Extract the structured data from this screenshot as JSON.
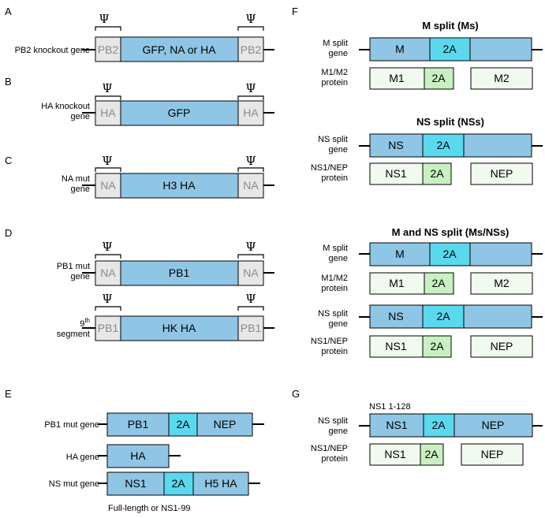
{
  "colors": {
    "gene": "#8fc6e6",
    "cleave": "#5ad8ee",
    "utr": "#e7e7e7",
    "utr_text": "#8a8a8a",
    "protein": "#f1faee",
    "protein_2a": "#c9f0c2",
    "stroke": "#000000"
  },
  "icons": {
    "packaging_signal": "psi-bracket-icon"
  },
  "panels": {
    "A": {
      "letter": "A",
      "gene_label": "PB2 knockout gene",
      "psi": "Ψ",
      "left_end": "PB2",
      "middle": "GFP, NA or HA",
      "right_end": "PB2"
    },
    "B": {
      "letter": "B",
      "gene_label": [
        "HA knockout",
        "gene"
      ],
      "psi": "Ψ",
      "left_end": "HA",
      "middle": "GFP",
      "right_end": "HA"
    },
    "C": {
      "letter": "C",
      "gene_label": [
        "NA mut",
        "gene"
      ],
      "psi": "Ψ",
      "left_end": "NA",
      "middle": "H3 HA",
      "right_end": "NA"
    },
    "D": {
      "letter": "D",
      "rows": [
        {
          "gene_label": [
            "PB1 mut",
            "gene"
          ],
          "psi": "Ψ",
          "left_end": "NA",
          "middle": "PB1",
          "right_end": "NA"
        },
        {
          "gene_label_base": "9",
          "gene_label_sup": "th",
          "gene_label_line2": "segment",
          "psi": "Ψ",
          "left_end": "PB1",
          "middle": "HK HA",
          "right_end": "PB1"
        }
      ]
    },
    "E": {
      "letter": "E",
      "rows": [
        {
          "label": "PB1 mut gene",
          "segments": [
            "PB1",
            "2A",
            "NEP"
          ]
        },
        {
          "label": "HA gene",
          "segments": [
            "HA"
          ]
        },
        {
          "label": "NS mut gene",
          "segments": [
            "NS1",
            "2A",
            "H5 HA"
          ]
        }
      ],
      "footnote": "Full-length or NS1-99"
    },
    "F": {
      "letter": "F",
      "groups": [
        {
          "title": "M split (Ms)",
          "gene_label": [
            "M split",
            "gene"
          ],
          "gene": [
            "M",
            "2A"
          ],
          "protein_label": [
            "M1/M2",
            "protein"
          ],
          "protein": [
            "M1",
            "2A",
            "M2"
          ]
        },
        {
          "title": "NS split (NSs)",
          "gene_label": [
            "NS split",
            "gene"
          ],
          "gene": [
            "NS",
            "2A"
          ],
          "protein_label": [
            "NS1/NEP",
            "protein"
          ],
          "protein": [
            "NS1",
            "2A",
            "NEP"
          ]
        },
        {
          "title": "M and NS split (Ms/NSs)",
          "gene_label": [
            "M split",
            "gene"
          ],
          "gene": [
            "M",
            "2A"
          ],
          "protein_label": [
            "M1/M2",
            "protein"
          ],
          "protein": [
            "M1",
            "2A",
            "M2"
          ],
          "gene2_label": [
            "NS split",
            "gene"
          ],
          "gene2": [
            "NS",
            "2A"
          ],
          "protein2_label": [
            "NS1/NEP",
            "protein"
          ],
          "protein2": [
            "NS1",
            "2A",
            "NEP"
          ]
        }
      ]
    },
    "G": {
      "letter": "G",
      "annotation": "NS1 1-128",
      "gene_label": [
        "NS split",
        "gene"
      ],
      "gene": [
        "NS1",
        "2A",
        "NEP"
      ],
      "protein_label": [
        "NS1/NEP",
        "protein"
      ],
      "protein": [
        "NS1",
        "2A",
        "NEP"
      ]
    }
  }
}
